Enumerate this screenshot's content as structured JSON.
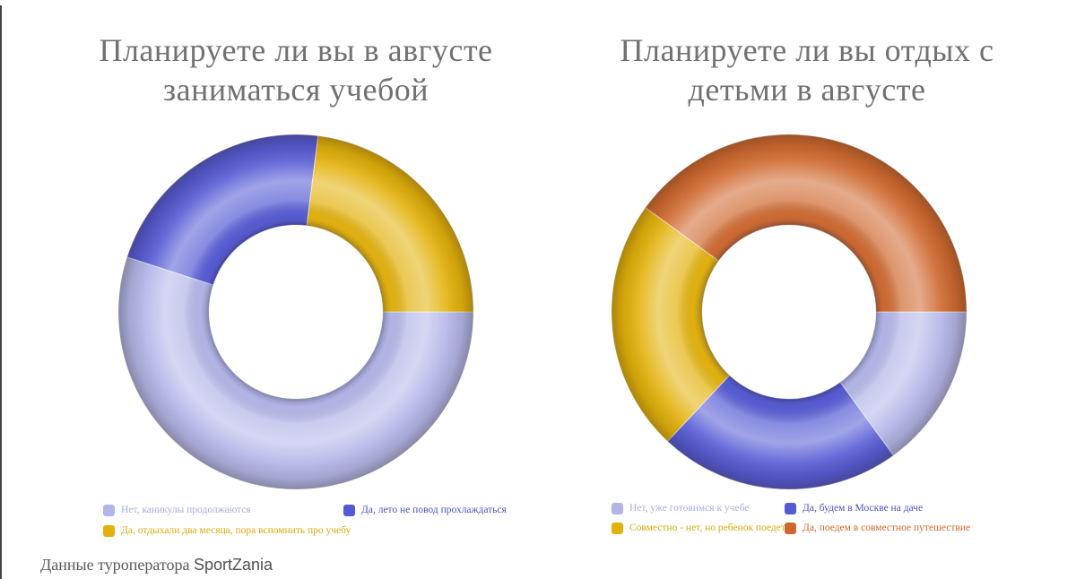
{
  "page": {
    "background": "#ffffff",
    "left_border_color": "#454545",
    "title_color": "#717171",
    "footer_prefix": "Данные туроператора ",
    "footer_brand": "SportZania"
  },
  "chart_data": [
    {
      "type": "donut",
      "title": "Планируете ли вы в августе заниматься учебой",
      "title_lines": [
        "Планируете ли вы в августе",
        "заниматься учебой"
      ],
      "start_angle_deg": 90,
      "direction": "clockwise",
      "inner_radius_ratio": 0.49,
      "legend_position": "bottom",
      "segments": [
        {
          "label": "Нет, каникулы продолжаются",
          "value_pct": 55,
          "color": "#b2b5e8",
          "legend_text_color": "#a9ade2"
        },
        {
          "label": "Да, лето не повод прохлаждаться",
          "value_pct": 22,
          "color": "#5459d4",
          "legend_text_color": "#4a51c8"
        },
        {
          "label": "Да, отдыхали два месяца, пора вспомнить про учебу",
          "value_pct": 23,
          "color": "#e3b109",
          "legend_text_color": "#dba90f"
        }
      ]
    },
    {
      "type": "donut",
      "title": "Планируете ли вы отдых с детьми в августе",
      "title_lines": [
        "Планируете ли вы отдых с",
        "детьми в августе"
      ],
      "start_angle_deg": 90,
      "direction": "clockwise",
      "inner_radius_ratio": 0.49,
      "legend_position": "bottom",
      "segments": [
        {
          "label": "Нет, уже готовимся к учебе",
          "value_pct": 15,
          "color": "#b2b5e8",
          "legend_text_color": "#a9ade2"
        },
        {
          "label": "Да, будем в Москве на даче",
          "value_pct": 22,
          "color": "#5459d4",
          "legend_text_color": "#4a51c8"
        },
        {
          "label": "Совместно - нет, но ребенок поедет",
          "value_pct": 23,
          "color": "#e3b109",
          "legend_text_color": "#dba90f"
        },
        {
          "label": "Да, поедем в совместное путешествие",
          "value_pct": 40,
          "color": "#cf682e",
          "legend_text_color": "#d4682a"
        }
      ]
    }
  ]
}
